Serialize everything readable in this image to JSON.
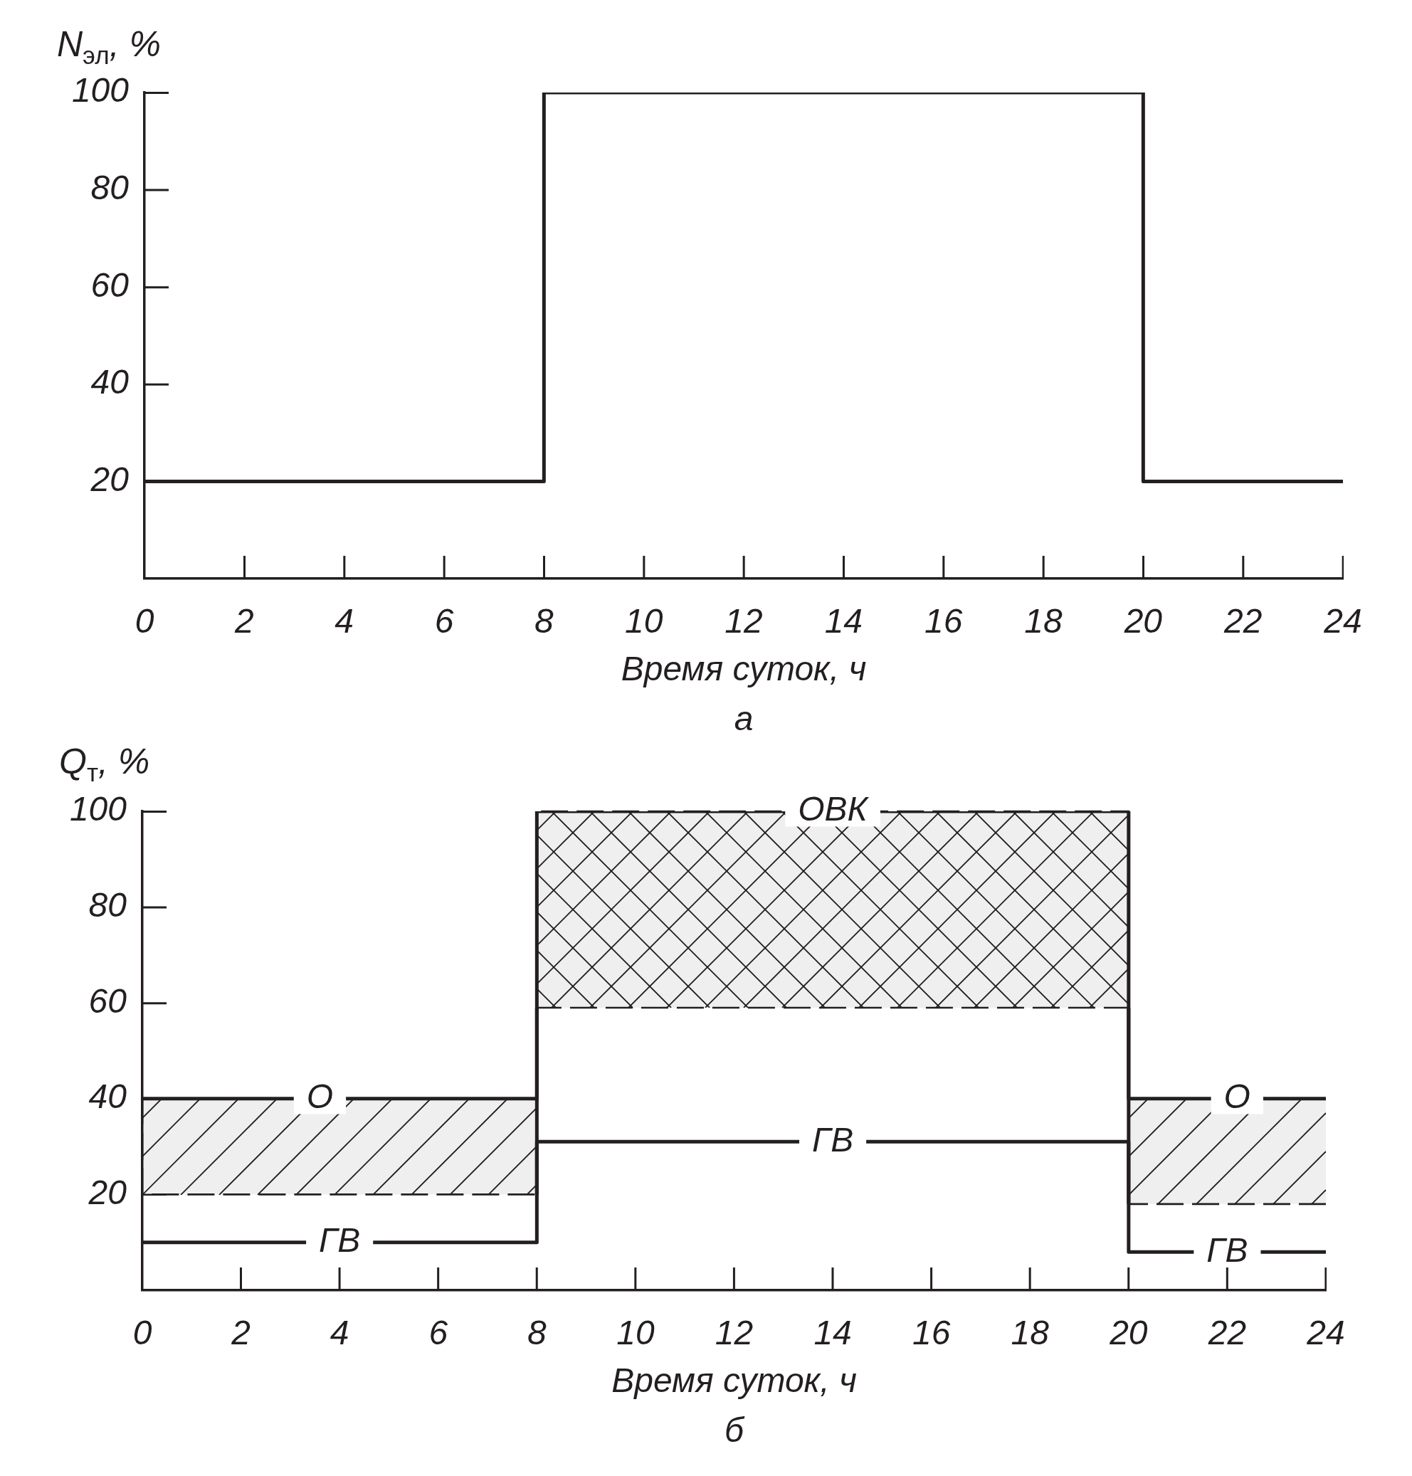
{
  "chart_data": [
    {
      "type": "step",
      "x": [
        0,
        8,
        20,
        24
      ],
      "values": [
        20,
        100,
        20,
        20
      ],
      "color": "#231f20",
      "xlim": [
        0,
        24
      ],
      "xticks": [
        0,
        2,
        4,
        6,
        8,
        10,
        12,
        14,
        16,
        18,
        20,
        22,
        24
      ],
      "ylim": [
        0,
        100
      ],
      "yticks": [
        20,
        40,
        60,
        80,
        100
      ],
      "xlabel": "Время суток, ч",
      "ylabel": "N$_{эл}$, %",
      "annotations": [
        "а"
      ]
    },
    {
      "type": "step",
      "series": [
        {
          "x": [
            0,
            8,
            20,
            24
          ],
          "values": [
            40,
            100,
            40,
            40
          ],
          "lower": [
            20,
            59,
            18,
            18
          ],
          "upper": [
            40,
            100,
            40,
            40
          ],
          "color": "#231f20"
        },
        {
          "name": "ГВ",
          "x": [
            0,
            8,
            20,
            24
          ],
          "values": [
            10,
            31,
            8,
            8
          ],
          "color": "#231f20"
        }
      ],
      "xlim": [
        0,
        24
      ],
      "xticks": [
        0,
        2,
        4,
        6,
        8,
        10,
        12,
        14,
        16,
        18,
        20,
        22,
        24
      ],
      "ylim": [
        0,
        100
      ],
      "yticks": [
        20,
        40,
        60,
        80,
        100
      ],
      "xlabel": "Время суток, ч",
      "ylabel": "Q$_{т}$, %",
      "annotations": [
        "б",
        {
          "text": "О",
          "x": 3.6,
          "y": 40
        },
        {
          "text": "ОВК",
          "x": 14,
          "y": 100
        },
        {
          "text": "О",
          "x": 22.2,
          "y": 40
        }
      ]
    }
  ]
}
